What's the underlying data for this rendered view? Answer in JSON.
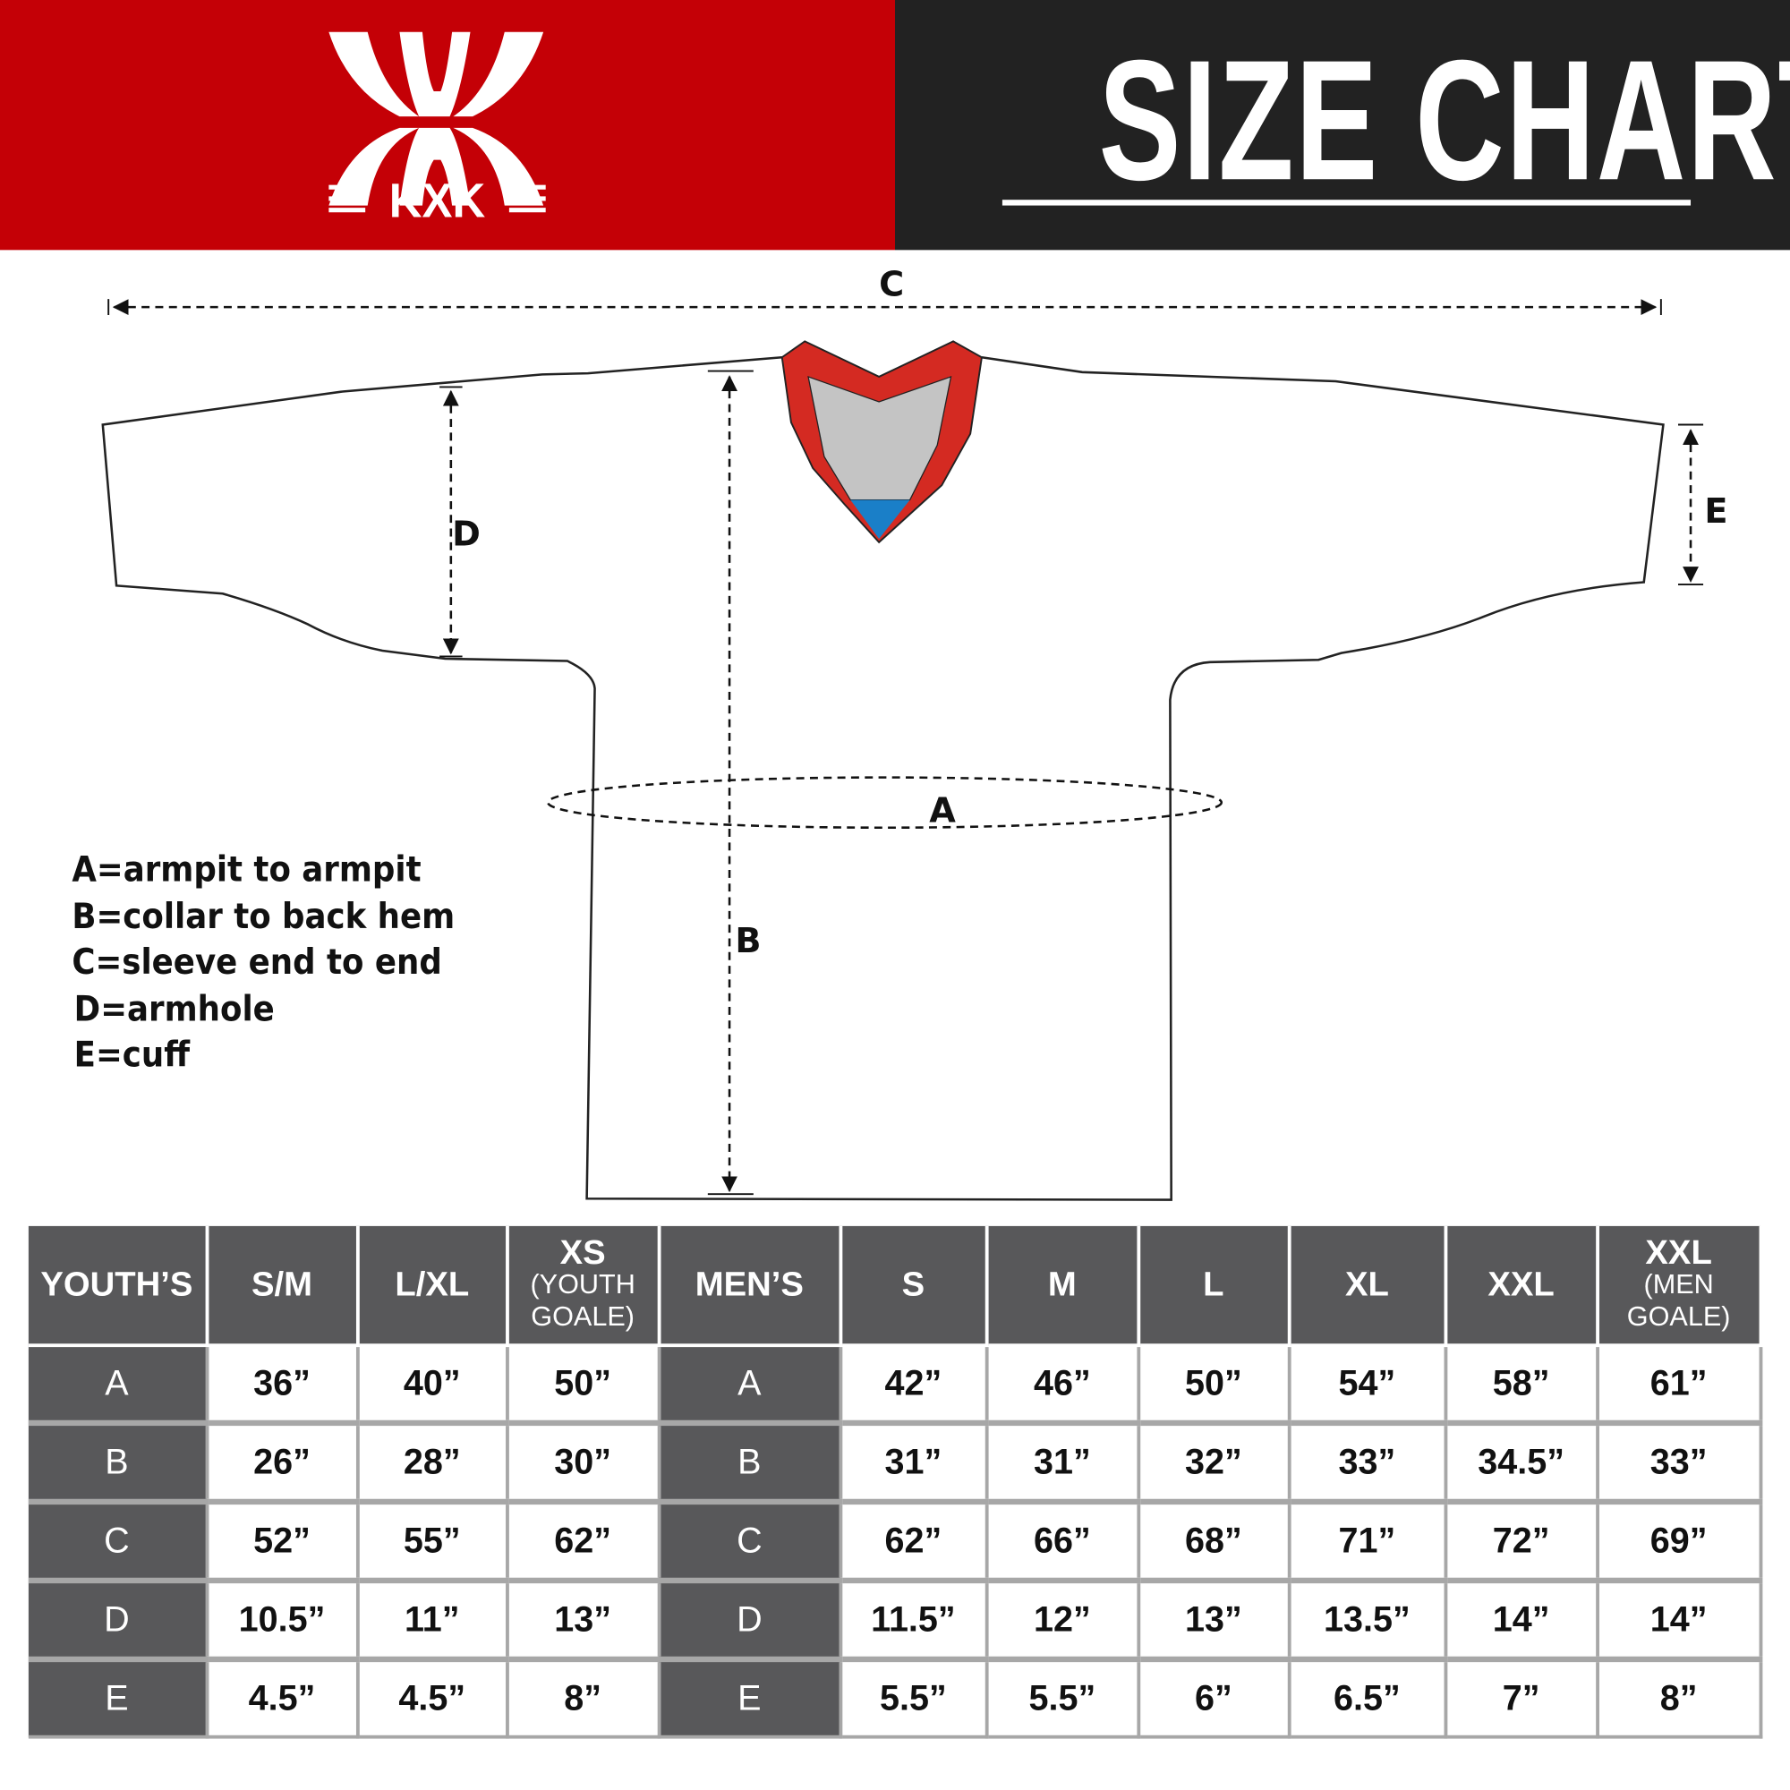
{
  "header": {
    "brand": "KXK",
    "title": "SIZE CHART",
    "colors": {
      "brand_red": "#c40006",
      "dark": "#222222",
      "table_header": "#58585a",
      "collar_red": "#d42a22",
      "collar_blue": "#1a7fc8"
    }
  },
  "diagram": {
    "labels": {
      "a": "A",
      "b": "B",
      "c": "C",
      "d": "D",
      "e": "E"
    },
    "legend": [
      "A=armpit to armpit",
      "B=collar to back hem",
      "C=sleeve end to end",
      "D=armhole",
      "E=cuff"
    ]
  },
  "table": {
    "youth_header": "YOUTH’S",
    "youth_sizes": [
      {
        "main": "S/M",
        "sub": ""
      },
      {
        "main": "L/XL",
        "sub": ""
      },
      {
        "main": "XS",
        "sub": "(YOUTH GOALE)"
      }
    ],
    "men_header": "MEN’S",
    "men_sizes": [
      {
        "main": "S",
        "sub": ""
      },
      {
        "main": "M",
        "sub": ""
      },
      {
        "main": "L",
        "sub": ""
      },
      {
        "main": "XL",
        "sub": ""
      },
      {
        "main": "XXL",
        "sub": ""
      },
      {
        "main": "XXL",
        "sub": "(MEN GOALE)"
      }
    ],
    "rows": [
      {
        "label": "A",
        "youth": [
          "36”",
          "40”",
          "50”"
        ],
        "men": [
          "42”",
          "46”",
          "50”",
          "54”",
          "58”",
          "61”"
        ]
      },
      {
        "label": "B",
        "youth": [
          "26”",
          "28”",
          "30”"
        ],
        "men": [
          "31”",
          "31”",
          "32”",
          "33”",
          "34.5”",
          "33”"
        ]
      },
      {
        "label": "C",
        "youth": [
          "52”",
          "55”",
          "62”"
        ],
        "men": [
          "62”",
          "66”",
          "68”",
          "71”",
          "72”",
          "69”"
        ]
      },
      {
        "label": "D",
        "youth": [
          "10.5”",
          "11”",
          "13”"
        ],
        "men": [
          "11.5”",
          "12”",
          "13”",
          "13.5”",
          "14”",
          "14”"
        ]
      },
      {
        "label": "E",
        "youth": [
          "4.5”",
          "4.5”",
          "8”"
        ],
        "men": [
          "5.5”",
          "5.5”",
          "6”",
          "6.5”",
          "7”",
          "8”"
        ]
      }
    ]
  }
}
